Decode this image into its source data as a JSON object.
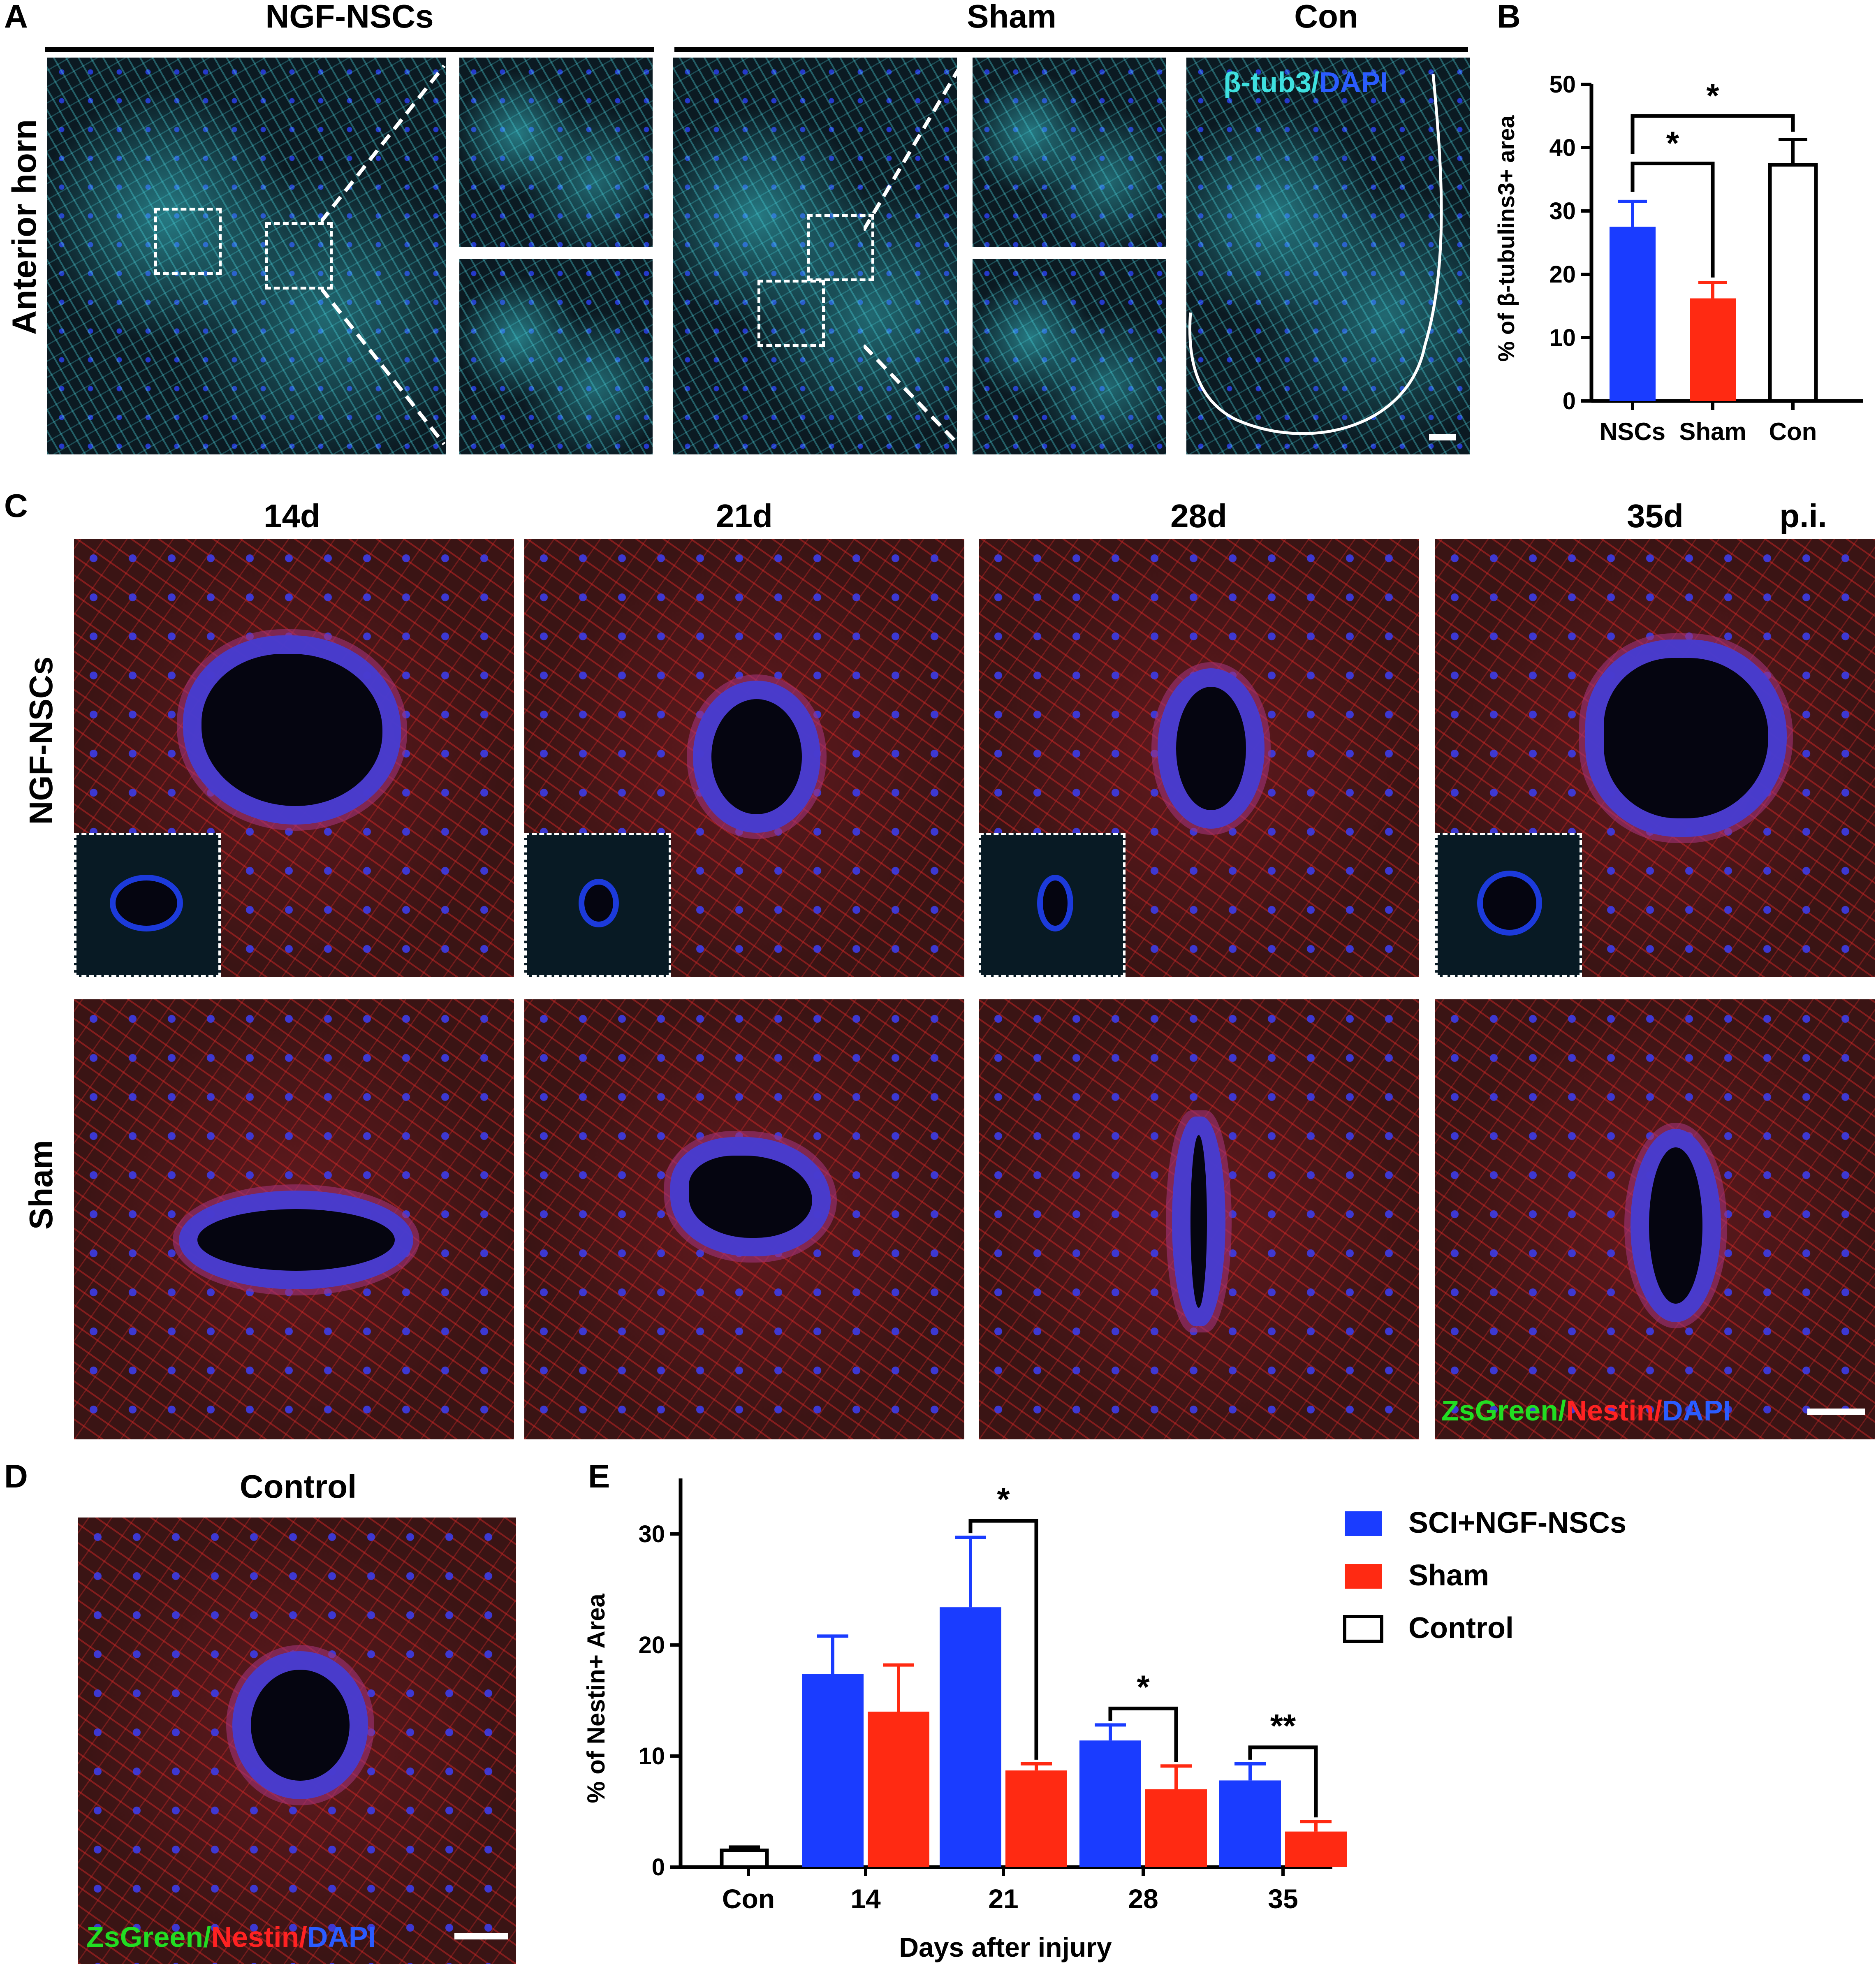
{
  "panel_labels": {
    "a": "A",
    "b": "B",
    "c": "C",
    "d": "D",
    "e": "E"
  },
  "panel_a": {
    "groups": [
      "NGF-NSCs",
      "Sham",
      "Con"
    ],
    "row_label": "Anterior horn",
    "stain_1": "β-tub3",
    "stain_sep": "/",
    "stain_2": "DAPI",
    "colors": {
      "beta_tub3": "#3ee0e0",
      "dapi": "#2a5cff"
    }
  },
  "panel_c": {
    "timepoints": [
      "14d",
      "21d",
      "28d",
      "35d"
    ],
    "suffix": "p.i.",
    "rows": [
      "NGF-NSCs",
      "Sham"
    ],
    "stain_1": "ZsGreen",
    "stain_2": "Nestin",
    "stain_3": "DAPI",
    "sep": "/",
    "colors": {
      "zsgreen": "#22dd22",
      "nestin": "#ff2222",
      "dapi": "#2a5cff"
    }
  },
  "panel_d": {
    "title": "Control",
    "stain_1": "ZsGreen",
    "stain_2": "Nestin",
    "stain_3": "DAPI",
    "sep": "/"
  },
  "chart_data": [
    {
      "type": "bar",
      "panel": "B",
      "categories": [
        "NSCs",
        "Sham",
        "Con"
      ],
      "values": [
        27.5,
        16.2,
        37.3
      ],
      "errors": [
        4.0,
        2.5,
        4.0
      ],
      "colors": [
        "#1a3cff",
        "#ff2a12",
        "#ffffff"
      ],
      "ylabel": "% of  β-tubulins3+ area",
      "ylim": [
        0,
        50
      ],
      "yticks": [
        0,
        10,
        20,
        30,
        40,
        50
      ],
      "significance": [
        {
          "from": "NSCs",
          "to": "Sham",
          "label": "*"
        },
        {
          "from": "NSCs",
          "to": "Con",
          "label": "*"
        }
      ]
    },
    {
      "type": "bar",
      "panel": "E",
      "categories": [
        "Con",
        "14",
        "21",
        "28",
        "35"
      ],
      "xlabel": "Days after injury",
      "ylabel": "% of Nestin+ Area",
      "ylim": [
        0,
        35
      ],
      "yticks": [
        0,
        10,
        20,
        30
      ],
      "series": [
        {
          "name": "SCI+NGF-NSCs",
          "color": "#1a3cff",
          "values": [
            null,
            17.4,
            23.4,
            11.4,
            7.8
          ],
          "errors": [
            null,
            3.4,
            6.3,
            1.4,
            1.5
          ]
        },
        {
          "name": "Sham",
          "color": "#ff2a12",
          "values": [
            null,
            14.0,
            8.7,
            7.0,
            3.2
          ],
          "errors": [
            null,
            4.2,
            0.6,
            2.1,
            0.9
          ]
        },
        {
          "name": "Control",
          "color": "#ffffff",
          "values": [
            1.5,
            null,
            null,
            null,
            null
          ],
          "errors": [
            0.3,
            null,
            null,
            null,
            null
          ]
        }
      ],
      "significance": [
        {
          "category": "21",
          "label": "*"
        },
        {
          "category": "28",
          "label": "*"
        },
        {
          "category": "35",
          "label": "**"
        }
      ],
      "legend_position": "top-right"
    }
  ]
}
